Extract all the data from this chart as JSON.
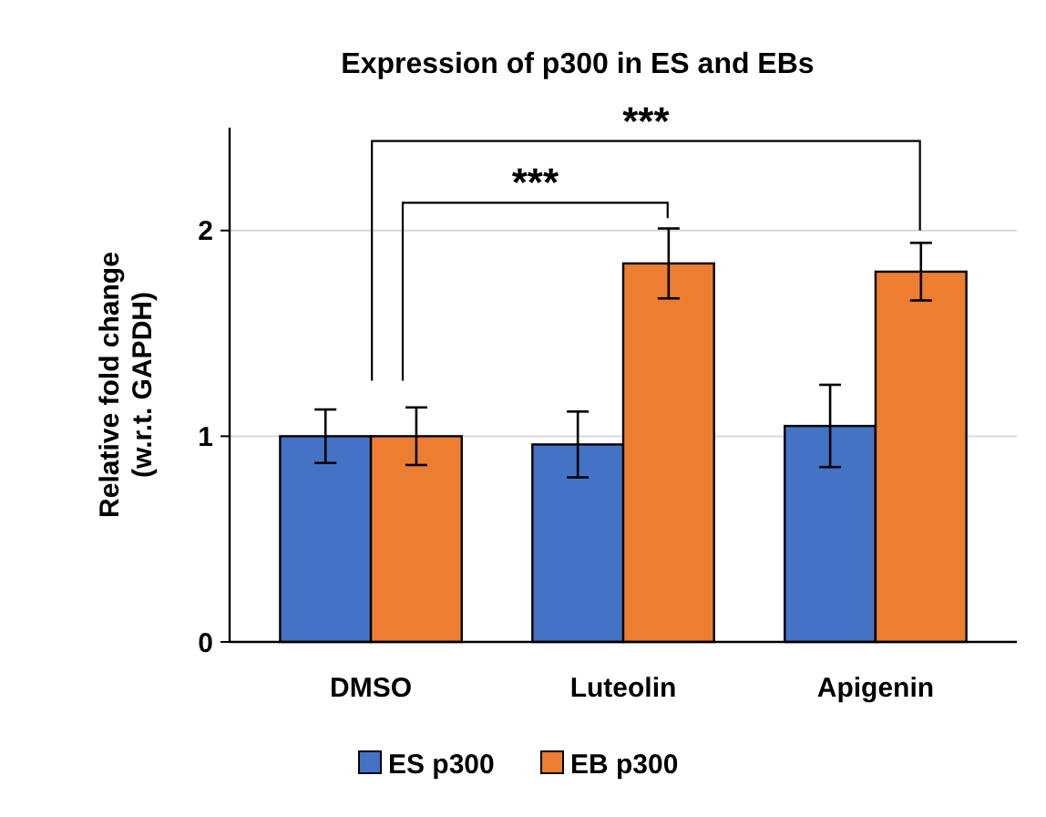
{
  "chart_data": {
    "type": "bar",
    "title": "Expression of p300 in ES and EBs",
    "ylabel": "Relative fold change (w.r.t. GAPDH)",
    "categories": [
      "DMSO",
      "Luteolin",
      "Apigenin"
    ],
    "series": [
      {
        "name": "ES p300",
        "color": "#4472c4",
        "values": [
          1.0,
          0.96,
          1.05
        ],
        "errors": [
          0.13,
          0.16,
          0.2
        ]
      },
      {
        "name": "EB p300",
        "color": "#ed7d31",
        "values": [
          1.0,
          1.84,
          1.8
        ],
        "errors": [
          0.14,
          0.17,
          0.14
        ]
      }
    ],
    "ylim": [
      0,
      2.5
    ],
    "yticks": [
      0,
      1,
      2
    ],
    "grid": "y",
    "legend": "bottom",
    "annotations": [
      "***",
      "***"
    ]
  }
}
